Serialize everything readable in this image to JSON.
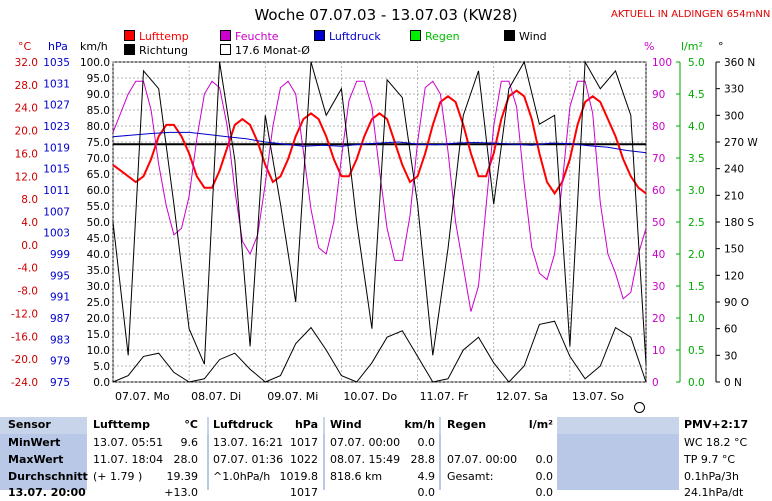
{
  "header": {
    "title": "Woche 07.07.03 - 13.07.03 (KW28)",
    "live_link": "AKTUELL IN ALDINGEN 654mNN"
  },
  "units": {
    "temp": "°C",
    "pressure": "hPa",
    "wind": "km/h",
    "humidity": "%",
    "rain": "l/m²",
    "direction": "°"
  },
  "legend": {
    "lufttemp": "Lufttemp",
    "feuchte": "Feuchte",
    "luftdruck": "Luftdruck",
    "regen": "Regen",
    "wind": "Wind",
    "richtung": "Richtung",
    "monatsmittel": "17.6 Monat-Ø"
  },
  "colors": {
    "lufttemp": "#ff0000",
    "feuchte": "#cc00cc",
    "luftdruck": "#0000cc",
    "regen": "#00cc00",
    "wind": "#000000",
    "temp_axis": "#cc0000",
    "pressure_axis": "#0000cc",
    "footer_bg": "#b8c8e6"
  },
  "chart_data": {
    "type": "line",
    "title": "Woche 07.07.03 - 13.07.03 (KW28)",
    "x_ticks": [
      "07.07. Mo",
      "08.07. Di",
      "09.07. Mi",
      "10.07. Do",
      "11.07. Fr",
      "12.07. Sa",
      "13.07. So"
    ],
    "axes": {
      "temp": {
        "range": [
          -24.0,
          32.0
        ],
        "ticks": [
          "32.0",
          "28.0",
          "24.0",
          "20.0",
          "16.0",
          "12.0",
          "8.0",
          "4.0",
          "0.0",
          "-4.0",
          "-8.0",
          "-12.0",
          "-16.0",
          "-20.0",
          "-24.0"
        ]
      },
      "pressure": {
        "range": [
          975,
          1035
        ],
        "ticks": [
          "1035",
          "1031",
          "1027",
          "1023",
          "1019",
          "1015",
          "1011",
          "1007",
          "1003",
          "999",
          "995",
          "991",
          "987",
          "983",
          "979",
          "975"
        ]
      },
      "wind": {
        "range": [
          0,
          100
        ],
        "ticks": [
          "100.0",
          "95.0",
          "90.0",
          "85.0",
          "80.0",
          "75.0",
          "70.0",
          "65.0",
          "60.0",
          "55.0",
          "50.0",
          "45.0",
          "40.0",
          "35.0",
          "30.0",
          "25.0",
          "20.0",
          "15.0",
          "10.0",
          "5.0",
          "0.0"
        ]
      },
      "humidity": {
        "range": [
          0,
          100
        ],
        "ticks": [
          "100",
          "90",
          "80",
          "70",
          "60",
          "50",
          "40",
          "30",
          "20",
          "10",
          "0"
        ]
      },
      "rain": {
        "range": [
          0,
          5
        ],
        "ticks": [
          "5.0",
          "4.5",
          "4.0",
          "3.5",
          "3.0",
          "2.5",
          "2.0",
          "1.5",
          "1.0",
          "0.5",
          "0.0"
        ]
      },
      "direction": {
        "range": [
          0,
          360
        ],
        "ticks": [
          "360 N",
          "330",
          "300",
          "270 W",
          "240",
          "210",
          "180 S",
          "150",
          "120",
          "90 O",
          "60",
          "30",
          "0 N"
        ]
      }
    },
    "monthly_mean_temp": 17.6,
    "series": [
      {
        "name": "Lufttemp",
        "axis": "temp",
        "x": [
          0,
          0.1,
          0.2,
          0.3,
          0.4,
          0.5,
          0.6,
          0.7,
          0.8,
          0.9,
          1.0,
          1.1,
          1.2,
          1.3,
          1.4,
          1.5,
          1.6,
          1.7,
          1.8,
          1.9,
          2.0,
          2.1,
          2.2,
          2.3,
          2.4,
          2.5,
          2.6,
          2.7,
          2.8,
          2.9,
          3.0,
          3.1,
          3.2,
          3.3,
          3.4,
          3.5,
          3.6,
          3.7,
          3.8,
          3.9,
          4.0,
          4.1,
          4.2,
          4.3,
          4.4,
          4.5,
          4.6,
          4.7,
          4.8,
          4.9,
          5.0,
          5.1,
          5.2,
          5.3,
          5.4,
          5.5,
          5.6,
          5.7,
          5.8,
          5.9,
          6.0,
          6.1,
          6.2,
          6.3,
          6.4,
          6.5,
          6.6,
          6.7,
          6.8,
          6.9,
          7.0
        ],
        "values": [
          14,
          13,
          12,
          11,
          12,
          15,
          19,
          21,
          21,
          19,
          16,
          12,
          10,
          10,
          13,
          17,
          21,
          22,
          21,
          18,
          14,
          11,
          12,
          15,
          19,
          22,
          23,
          22,
          19,
          15,
          12,
          12,
          15,
          19,
          22,
          23,
          22,
          18,
          14,
          11,
          12,
          16,
          21,
          25,
          26,
          25,
          21,
          16,
          12,
          12,
          16,
          22,
          26,
          27,
          26,
          22,
          16,
          11,
          9,
          11,
          15,
          21,
          25,
          26,
          25,
          22,
          19,
          15,
          12,
          10,
          9
        ]
      },
      {
        "name": "Feuchte",
        "axis": "humidity",
        "x": [
          0,
          0.1,
          0.2,
          0.3,
          0.4,
          0.5,
          0.6,
          0.7,
          0.8,
          0.9,
          1.0,
          1.1,
          1.2,
          1.3,
          1.4,
          1.5,
          1.6,
          1.7,
          1.8,
          1.9,
          2.0,
          2.1,
          2.2,
          2.3,
          2.4,
          2.5,
          2.6,
          2.7,
          2.8,
          2.9,
          3.0,
          3.1,
          3.2,
          3.3,
          3.4,
          3.5,
          3.6,
          3.7,
          3.8,
          3.9,
          4.0,
          4.1,
          4.2,
          4.3,
          4.4,
          4.5,
          4.6,
          4.7,
          4.8,
          4.9,
          5.0,
          5.1,
          5.2,
          5.3,
          5.4,
          5.5,
          5.6,
          5.7,
          5.8,
          5.9,
          6.0,
          6.1,
          6.2,
          6.3,
          6.4,
          6.5,
          6.6,
          6.7,
          6.8,
          6.9,
          7.0
        ],
        "values": [
          78,
          84,
          90,
          94,
          94,
          85,
          68,
          55,
          46,
          48,
          58,
          76,
          90,
          94,
          92,
          80,
          60,
          44,
          40,
          46,
          62,
          80,
          92,
          94,
          90,
          72,
          54,
          42,
          40,
          50,
          70,
          88,
          94,
          94,
          86,
          66,
          48,
          38,
          38,
          52,
          75,
          92,
          94,
          90,
          72,
          50,
          36,
          22,
          30,
          55,
          80,
          94,
          94,
          86,
          62,
          42,
          34,
          32,
          40,
          62,
          86,
          94,
          94,
          84,
          56,
          40,
          34,
          26,
          28,
          40,
          48
        ]
      },
      {
        "name": "Luftdruck",
        "axis": "pressure",
        "x": [
          0,
          0.25,
          0.5,
          0.75,
          1.0,
          1.25,
          1.5,
          1.75,
          2.0,
          2.25,
          2.5,
          2.75,
          3.0,
          3.25,
          3.5,
          3.75,
          4.0,
          4.25,
          4.5,
          4.75,
          5.0,
          5.25,
          5.5,
          5.75,
          6.0,
          6.25,
          6.5,
          6.75,
          7.0
        ],
        "values": [
          1021,
          1021.3,
          1021.6,
          1021.8,
          1021.8,
          1021.4,
          1021.0,
          1020.6,
          1020.0,
          1019.6,
          1019.2,
          1019.4,
          1019.2,
          1019.6,
          1019.8,
          1020.0,
          1019.6,
          1019.5,
          1019.8,
          1019.9,
          1019.8,
          1019.6,
          1019.4,
          1019.8,
          1019.7,
          1019.3,
          1019.0,
          1018.4,
          1018.0
        ]
      },
      {
        "name": "Wind",
        "axis": "wind",
        "x": [
          0,
          0.2,
          0.4,
          0.6,
          0.8,
          1.0,
          1.2,
          1.4,
          1.6,
          1.8,
          2.0,
          2.2,
          2.4,
          2.6,
          2.8,
          3.0,
          3.2,
          3.4,
          3.6,
          3.8,
          4.0,
          4.2,
          4.4,
          4.6,
          4.8,
          5.0,
          5.2,
          5.4,
          5.6,
          5.8,
          6.0,
          6.2,
          6.4,
          6.6,
          6.8,
          7.0
        ],
        "values": [
          0,
          2,
          8,
          9,
          3,
          0,
          1,
          7,
          9,
          4,
          0,
          2,
          12,
          17,
          10,
          2,
          0,
          6,
          14,
          16,
          8,
          0,
          1,
          10,
          14,
          6,
          0,
          5,
          18,
          19,
          8,
          1,
          5,
          17,
          14,
          0
        ]
      },
      {
        "name": "Richtung",
        "axis": "direction",
        "x": [
          0,
          0.2,
          0.4,
          0.6,
          0.8,
          1.0,
          1.2,
          1.4,
          1.6,
          1.8,
          2.0,
          2.2,
          2.4,
          2.6,
          2.8,
          3.0,
          3.2,
          3.4,
          3.6,
          3.8,
          4.0,
          4.2,
          4.4,
          4.6,
          4.8,
          5.0,
          5.2,
          5.4,
          5.6,
          5.8,
          6.0,
          6.2,
          6.4,
          6.6,
          6.8,
          7.0
        ],
        "values": [
          180,
          30,
          350,
          330,
          200,
          60,
          20,
          360,
          250,
          40,
          300,
          200,
          90,
          360,
          300,
          330,
          180,
          60,
          340,
          320,
          200,
          30,
          150,
          300,
          350,
          200,
          330,
          360,
          290,
          300,
          40,
          360,
          330,
          350,
          300,
          20
        ]
      }
    ]
  },
  "footer": {
    "sensor": {
      "header": "Sensor",
      "rows": [
        "MinWert",
        "MaxWert",
        "Durchschnitt",
        "13.07. 20:00"
      ]
    },
    "lufttemp": {
      "header": "Lufttemp",
      "unit": "°C",
      "rows": [
        [
          "13.07.  05:51",
          "9.6"
        ],
        [
          "11.07.  18:04",
          "28.0"
        ],
        [
          "(+ 1.79 )",
          "19.39"
        ],
        [
          "",
          "+13.0"
        ]
      ]
    },
    "luftdruck": {
      "header": "Luftdruck",
      "unit": "hPa",
      "rows": [
        [
          "13.07.  16:21",
          "1017"
        ],
        [
          "07.07.  01:36",
          "1022"
        ],
        [
          "^1.0hPa/h",
          "1019.8"
        ],
        [
          "",
          "1017"
        ]
      ]
    },
    "wind": {
      "header": "Wind",
      "unit": "km/h",
      "rows": [
        [
          "07.07.  00:00",
          "0.0"
        ],
        [
          "08.07.  15:49",
          "28.8"
        ],
        [
          "818.6 km",
          "4.9"
        ],
        [
          "",
          "0.0"
        ]
      ]
    },
    "regen": {
      "header": "Regen",
      "unit": "l/m²",
      "rows": [
        [
          "",
          ""
        ],
        [
          "07.07.  00:00",
          "0.0"
        ],
        [
          "Gesamt:",
          "0.0"
        ],
        [
          "",
          "0.0"
        ]
      ]
    },
    "pmv": {
      "header": "PMV+2:17",
      "rows": [
        "WC 18.2 °C",
        "TP 9.7 °C",
        "0.1hPa/3h",
        "24.1hPa/dt"
      ]
    }
  }
}
